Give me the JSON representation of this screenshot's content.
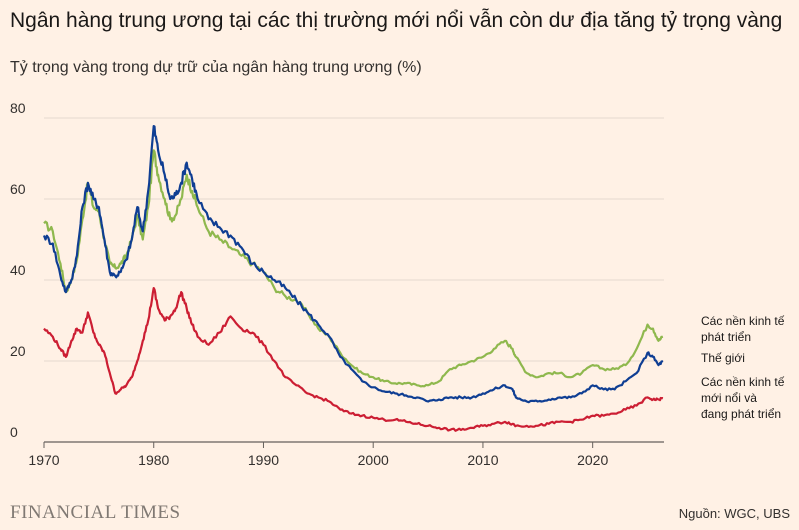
{
  "header": {
    "title": "Ngân hàng trung ương tại các thị trường mới nổi vẫn còn dư địa tăng tỷ trọng vàng",
    "subtitle": "Tỷ trọng vàng trong dự trữ của ngân hàng trung ương (%)"
  },
  "footer": {
    "brand": "FINANCIAL TIMES",
    "source": "Nguồn: WGC, UBS"
  },
  "chart_data": {
    "type": "line",
    "title": "Ngân hàng trung ương tại các thị trường mới nổi vẫn còn dư địa tăng tỷ trọng vàng",
    "ylabel": "Tỷ trọng vàng trong dự trữ của ngân hàng trung ương (%)",
    "xlabel": "",
    "xlim": [
      1970,
      2026.5
    ],
    "ylim": [
      0,
      80
    ],
    "x_ticks": [
      1970,
      1980,
      1990,
      2000,
      2010,
      2020
    ],
    "y_ticks": [
      0,
      20,
      40,
      60,
      80
    ],
    "grid": true,
    "legend": "inline-right",
    "series": [
      {
        "name": "Các nền kinh tế phát triển",
        "label_lines": [
          "Các nền kinh tế",
          "phát triển"
        ],
        "color": "#8fb84e",
        "points": [
          [
            1970.0,
            54
          ],
          [
            1970.8,
            52
          ],
          [
            1971.5,
            44
          ],
          [
            1972.0,
            37
          ],
          [
            1972.5,
            40
          ],
          [
            1973.0,
            45
          ],
          [
            1973.5,
            55
          ],
          [
            1974.0,
            64
          ],
          [
            1974.5,
            58
          ],
          [
            1975.0,
            57
          ],
          [
            1975.5,
            50
          ],
          [
            1976.0,
            44
          ],
          [
            1976.5,
            43
          ],
          [
            1977.0,
            44
          ],
          [
            1977.5,
            46
          ],
          [
            1978.0,
            50
          ],
          [
            1978.5,
            56
          ],
          [
            1979.0,
            50
          ],
          [
            1979.5,
            58
          ],
          [
            1980.0,
            72
          ],
          [
            1980.4,
            66
          ],
          [
            1981.0,
            60
          ],
          [
            1981.5,
            55
          ],
          [
            1982.0,
            56
          ],
          [
            1982.5,
            60
          ],
          [
            1983.0,
            66
          ],
          [
            1983.5,
            62
          ],
          [
            1984.0,
            58
          ],
          [
            1985.0,
            52
          ],
          [
            1986.0,
            50
          ],
          [
            1987.0,
            48
          ],
          [
            1988.0,
            46
          ],
          [
            1989.0,
            44
          ],
          [
            1990.0,
            42
          ],
          [
            1991.0,
            38
          ],
          [
            1992.0,
            36
          ],
          [
            1993.0,
            35
          ],
          [
            1994.0,
            32
          ],
          [
            1995.0,
            28
          ],
          [
            1996.0,
            26
          ],
          [
            1997.0,
            22
          ],
          [
            1998.0,
            19
          ],
          [
            1999.0,
            17
          ],
          [
            2000.0,
            16
          ],
          [
            2001.0,
            15
          ],
          [
            2002.0,
            14.5
          ],
          [
            2003.0,
            14.5
          ],
          [
            2004.0,
            14
          ],
          [
            2005.0,
            14
          ],
          [
            2006.0,
            15
          ],
          [
            2007.0,
            18
          ],
          [
            2008.0,
            19
          ],
          [
            2009.0,
            20
          ],
          [
            2010.0,
            21
          ],
          [
            2011.0,
            23
          ],
          [
            2012.0,
            25
          ],
          [
            2012.7,
            23
          ],
          [
            2013.0,
            21
          ],
          [
            2014.0,
            17
          ],
          [
            2015.0,
            16
          ],
          [
            2016.0,
            17
          ],
          [
            2017.0,
            17
          ],
          [
            2018.0,
            16
          ],
          [
            2019.0,
            17
          ],
          [
            2020.0,
            19
          ],
          [
            2021.0,
            18
          ],
          [
            2022.0,
            18
          ],
          [
            2023.0,
            19
          ],
          [
            2024.0,
            23
          ],
          [
            2025.0,
            29
          ],
          [
            2025.5,
            28
          ],
          [
            2026.0,
            25
          ],
          [
            2026.4,
            26
          ]
        ]
      },
      {
        "name": "Thế giới",
        "label_lines": [
          "Thế giới"
        ],
        "color": "#0f3e93",
        "points": [
          [
            1970.0,
            51
          ],
          [
            1970.8,
            49
          ],
          [
            1971.5,
            41
          ],
          [
            1972.0,
            37
          ],
          [
            1972.5,
            40
          ],
          [
            1973.0,
            46
          ],
          [
            1973.5,
            58
          ],
          [
            1974.0,
            64
          ],
          [
            1974.5,
            60
          ],
          [
            1975.0,
            58
          ],
          [
            1975.5,
            50
          ],
          [
            1976.0,
            42
          ],
          [
            1976.5,
            41
          ],
          [
            1977.0,
            42
          ],
          [
            1977.5,
            45
          ],
          [
            1978.0,
            50
          ],
          [
            1978.5,
            58
          ],
          [
            1979.0,
            52
          ],
          [
            1979.5,
            62
          ],
          [
            1980.0,
            78
          ],
          [
            1980.4,
            72
          ],
          [
            1981.0,
            66
          ],
          [
            1981.5,
            60
          ],
          [
            1982.0,
            61
          ],
          [
            1982.5,
            64
          ],
          [
            1983.0,
            69
          ],
          [
            1983.5,
            65
          ],
          [
            1984.0,
            60
          ],
          [
            1985.0,
            55
          ],
          [
            1986.0,
            53
          ],
          [
            1987.0,
            51
          ],
          [
            1988.0,
            48
          ],
          [
            1989.0,
            44
          ],
          [
            1990.0,
            42
          ],
          [
            1991.0,
            40
          ],
          [
            1992.0,
            38
          ],
          [
            1993.0,
            35
          ],
          [
            1994.0,
            32
          ],
          [
            1995.0,
            29
          ],
          [
            1996.0,
            26
          ],
          [
            1997.0,
            21
          ],
          [
            1998.0,
            18
          ],
          [
            1999.0,
            15
          ],
          [
            2000.0,
            13.5
          ],
          [
            2001.0,
            12.5
          ],
          [
            2002.0,
            12
          ],
          [
            2003.0,
            11.5
          ],
          [
            2004.0,
            11
          ],
          [
            2005.0,
            10
          ],
          [
            2006.0,
            10.5
          ],
          [
            2007.0,
            11
          ],
          [
            2008.0,
            11
          ],
          [
            2009.0,
            11
          ],
          [
            2010.0,
            12
          ],
          [
            2011.0,
            13
          ],
          [
            2012.0,
            14
          ],
          [
            2012.7,
            13
          ],
          [
            2013.0,
            11
          ],
          [
            2014.0,
            10
          ],
          [
            2015.0,
            10
          ],
          [
            2016.0,
            10.5
          ],
          [
            2017.0,
            11
          ],
          [
            2018.0,
            11
          ],
          [
            2019.0,
            12
          ],
          [
            2020.0,
            14
          ],
          [
            2021.0,
            13
          ],
          [
            2022.0,
            13
          ],
          [
            2023.0,
            15
          ],
          [
            2024.0,
            17
          ],
          [
            2025.0,
            22
          ],
          [
            2025.5,
            21
          ],
          [
            2026.0,
            19
          ],
          [
            2026.4,
            20
          ]
        ]
      },
      {
        "name": "Các nền kinh tế mới nổi và đang phát triển",
        "label_lines": [
          "Các nền kinh tế",
          "mới nổi và",
          "đang phát triển"
        ],
        "color": "#cc1e33",
        "points": [
          [
            1970.0,
            28
          ],
          [
            1970.8,
            26
          ],
          [
            1971.5,
            23
          ],
          [
            1972.0,
            21
          ],
          [
            1972.5,
            25
          ],
          [
            1973.0,
            28
          ],
          [
            1973.5,
            27
          ],
          [
            1974.0,
            32
          ],
          [
            1974.5,
            27
          ],
          [
            1975.0,
            24
          ],
          [
            1975.5,
            22
          ],
          [
            1976.0,
            17
          ],
          [
            1976.5,
            12
          ],
          [
            1977.0,
            13
          ],
          [
            1977.5,
            14
          ],
          [
            1978.0,
            16
          ],
          [
            1978.5,
            20
          ],
          [
            1979.0,
            25
          ],
          [
            1979.5,
            30
          ],
          [
            1980.0,
            38
          ],
          [
            1980.4,
            33
          ],
          [
            1981.0,
            30
          ],
          [
            1981.5,
            31
          ],
          [
            1982.0,
            33
          ],
          [
            1982.5,
            37
          ],
          [
            1983.0,
            33
          ],
          [
            1983.5,
            29
          ],
          [
            1984.0,
            26
          ],
          [
            1985.0,
            24
          ],
          [
            1986.0,
            27
          ],
          [
            1987.0,
            31
          ],
          [
            1988.0,
            28
          ],
          [
            1989.0,
            27
          ],
          [
            1990.0,
            24
          ],
          [
            1991.0,
            20
          ],
          [
            1992.0,
            16
          ],
          [
            1993.0,
            14
          ],
          [
            1994.0,
            12
          ],
          [
            1995.0,
            11
          ],
          [
            1996.0,
            10
          ],
          [
            1997.0,
            8
          ],
          [
            1998.0,
            7
          ],
          [
            1999.0,
            6.5
          ],
          [
            2000.0,
            6
          ],
          [
            2001.0,
            5.5
          ],
          [
            2002.0,
            5.5
          ],
          [
            2003.0,
            5
          ],
          [
            2004.0,
            4.5
          ],
          [
            2005.0,
            4
          ],
          [
            2006.0,
            3.5
          ],
          [
            2007.0,
            3
          ],
          [
            2008.0,
            3
          ],
          [
            2009.0,
            3.5
          ],
          [
            2010.0,
            4
          ],
          [
            2011.0,
            4.5
          ],
          [
            2012.0,
            5
          ],
          [
            2012.7,
            4.5
          ],
          [
            2013.0,
            4
          ],
          [
            2014.0,
            4
          ],
          [
            2015.0,
            4
          ],
          [
            2016.0,
            4.5
          ],
          [
            2017.0,
            5
          ],
          [
            2018.0,
            5
          ],
          [
            2019.0,
            5.5
          ],
          [
            2020.0,
            6.5
          ],
          [
            2021.0,
            6.5
          ],
          [
            2022.0,
            7
          ],
          [
            2023.0,
            8
          ],
          [
            2024.0,
            9
          ],
          [
            2025.0,
            11
          ],
          [
            2025.5,
            10.5
          ],
          [
            2026.0,
            10.5
          ],
          [
            2026.4,
            10.8
          ]
        ]
      }
    ]
  }
}
